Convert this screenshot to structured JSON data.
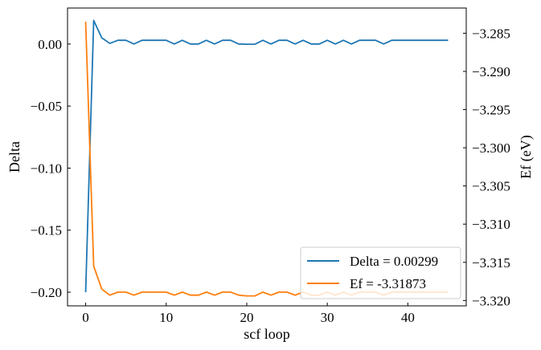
{
  "chart_data": {
    "type": "line",
    "title": "",
    "xlabel": "scf loop",
    "ylabel": "Delta",
    "y2label": "Ef (eV)",
    "xlim": [
      -2.25,
      47.25
    ],
    "ylim": [
      -0.211,
      0.029
    ],
    "y2lim": [
      -3.3207,
      -3.2817
    ],
    "x_ticks": [
      0,
      10,
      20,
      30,
      40
    ],
    "y_ticks": [
      0.0,
      -0.05,
      -0.1,
      -0.15,
      -0.2
    ],
    "y_tick_labels": [
      "0.00",
      "−0.05",
      "−0.10",
      "−0.15",
      "−0.20"
    ],
    "y2_ticks": [
      -3.285,
      -3.29,
      -3.295,
      -3.3,
      -3.305,
      -3.31,
      -3.315,
      -3.32
    ],
    "y2_tick_labels": [
      "−3.285",
      "−3.290",
      "−3.295",
      "−3.300",
      "−3.305",
      "−3.310",
      "−3.315",
      "−3.320"
    ],
    "legend_position": "lower-right",
    "grid": false,
    "series": [
      {
        "name": "Delta = 0.00299",
        "axis": "left",
        "color": "#1f77b4",
        "x": [
          0,
          1,
          2,
          3,
          4,
          5,
          6,
          7,
          8,
          9,
          10,
          11,
          12,
          13,
          14,
          15,
          16,
          17,
          18,
          19,
          20,
          21,
          22,
          23,
          24,
          25,
          26,
          27,
          28,
          29,
          30,
          31,
          32,
          33,
          34,
          35,
          36,
          37,
          38,
          39,
          40,
          41,
          42,
          43,
          44,
          45
        ],
        "values": [
          -0.2,
          0.019,
          0.005,
          0.0005,
          0.003,
          0.003,
          0.0,
          0.003,
          0.003,
          0.003,
          0.003,
          0.0,
          0.003,
          0.0,
          0.0,
          0.003,
          0.0,
          0.003,
          0.003,
          0.0,
          -0.0002,
          -0.0002,
          0.003,
          0.0,
          0.003,
          0.003,
          0.0,
          0.003,
          0.0,
          0.0,
          0.003,
          0.0,
          0.003,
          0.0,
          0.003,
          0.003,
          0.003,
          0.0,
          0.003,
          0.003,
          0.003,
          0.003,
          0.003,
          0.003,
          0.003,
          0.003
        ]
      },
      {
        "name": "Ef = -3.31873",
        "axis": "right",
        "color": "#ff7f0e",
        "x": [
          0,
          1,
          2,
          3,
          4,
          5,
          6,
          7,
          8,
          9,
          10,
          11,
          12,
          13,
          14,
          15,
          16,
          17,
          18,
          19,
          20,
          21,
          22,
          23,
          24,
          25,
          26,
          27,
          28,
          29,
          30,
          31,
          32,
          33,
          34,
          35,
          36,
          37,
          38,
          39,
          40,
          41,
          42,
          43,
          44,
          45
        ],
        "values": [
          -3.2835,
          -3.3155,
          -3.3185,
          -3.3193,
          -3.3189,
          -3.3189,
          -3.3193,
          -3.3189,
          -3.3189,
          -3.3189,
          -3.3189,
          -3.3193,
          -3.3189,
          -3.3193,
          -3.3193,
          -3.3189,
          -3.3193,
          -3.3189,
          -3.3189,
          -3.3193,
          -3.3194,
          -3.3194,
          -3.3189,
          -3.3193,
          -3.3189,
          -3.3189,
          -3.3193,
          -3.3189,
          -3.3193,
          -3.3193,
          -3.3189,
          -3.3193,
          -3.3189,
          -3.3193,
          -3.3189,
          -3.3189,
          -3.3189,
          -3.3193,
          -3.3189,
          -3.3189,
          -3.3189,
          -3.3189,
          -3.3189,
          -3.3189,
          -3.3189,
          -3.3189
        ]
      }
    ]
  }
}
